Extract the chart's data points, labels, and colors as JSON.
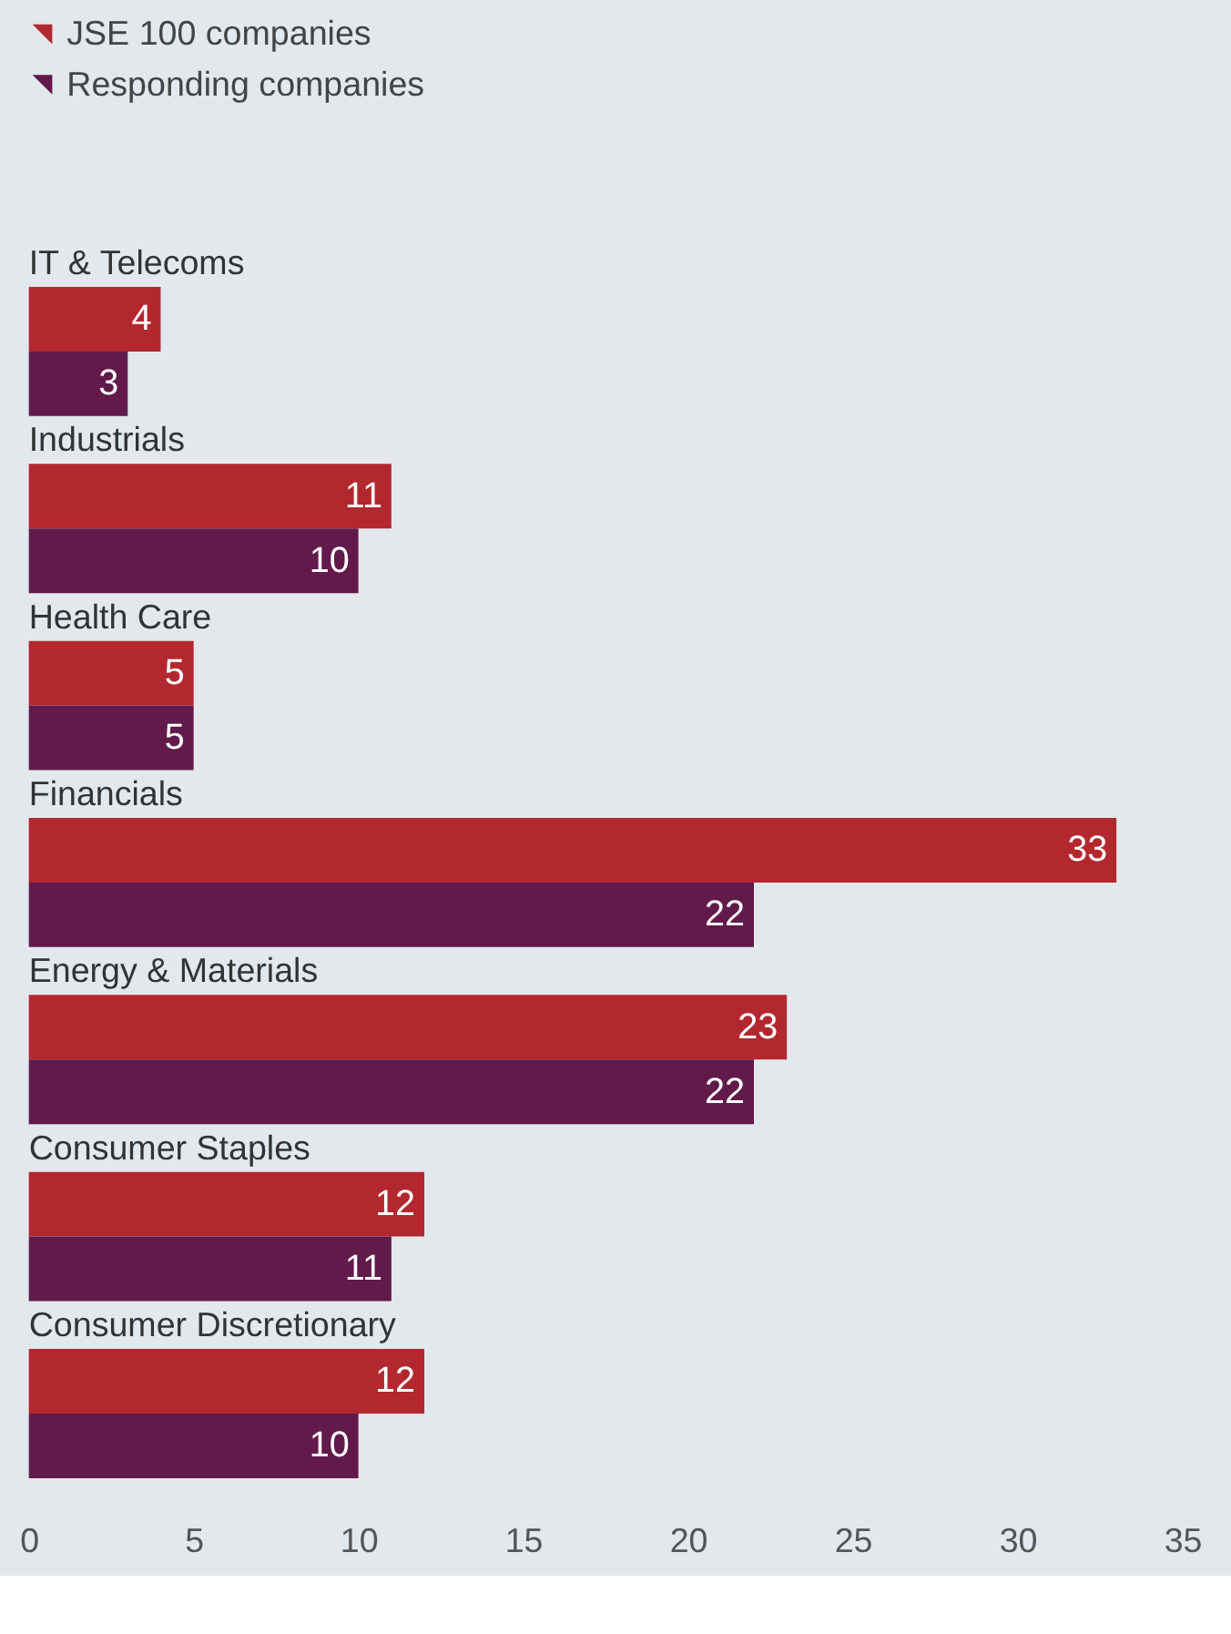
{
  "chart_data": {
    "type": "bar",
    "orientation": "horizontal",
    "categories": [
      "IT & Telecoms",
      "Industrials",
      "Health Care",
      "Financials",
      "Energy & Materials",
      "Consumer Staples",
      "Consumer Discretionary"
    ],
    "series": [
      {
        "name": "JSE 100 companies",
        "color": "#b3282f",
        "values": [
          4,
          11,
          5,
          33,
          23,
          12,
          12
        ]
      },
      {
        "name": "Responding companies",
        "color": "#621a4b",
        "values": [
          3,
          10,
          5,
          22,
          22,
          11,
          10
        ]
      }
    ],
    "xlim": [
      0,
      35
    ],
    "xticks": [
      0,
      5,
      10,
      15,
      20,
      25,
      30,
      35
    ],
    "data_labels": true,
    "grid": false,
    "legend": "top left"
  }
}
